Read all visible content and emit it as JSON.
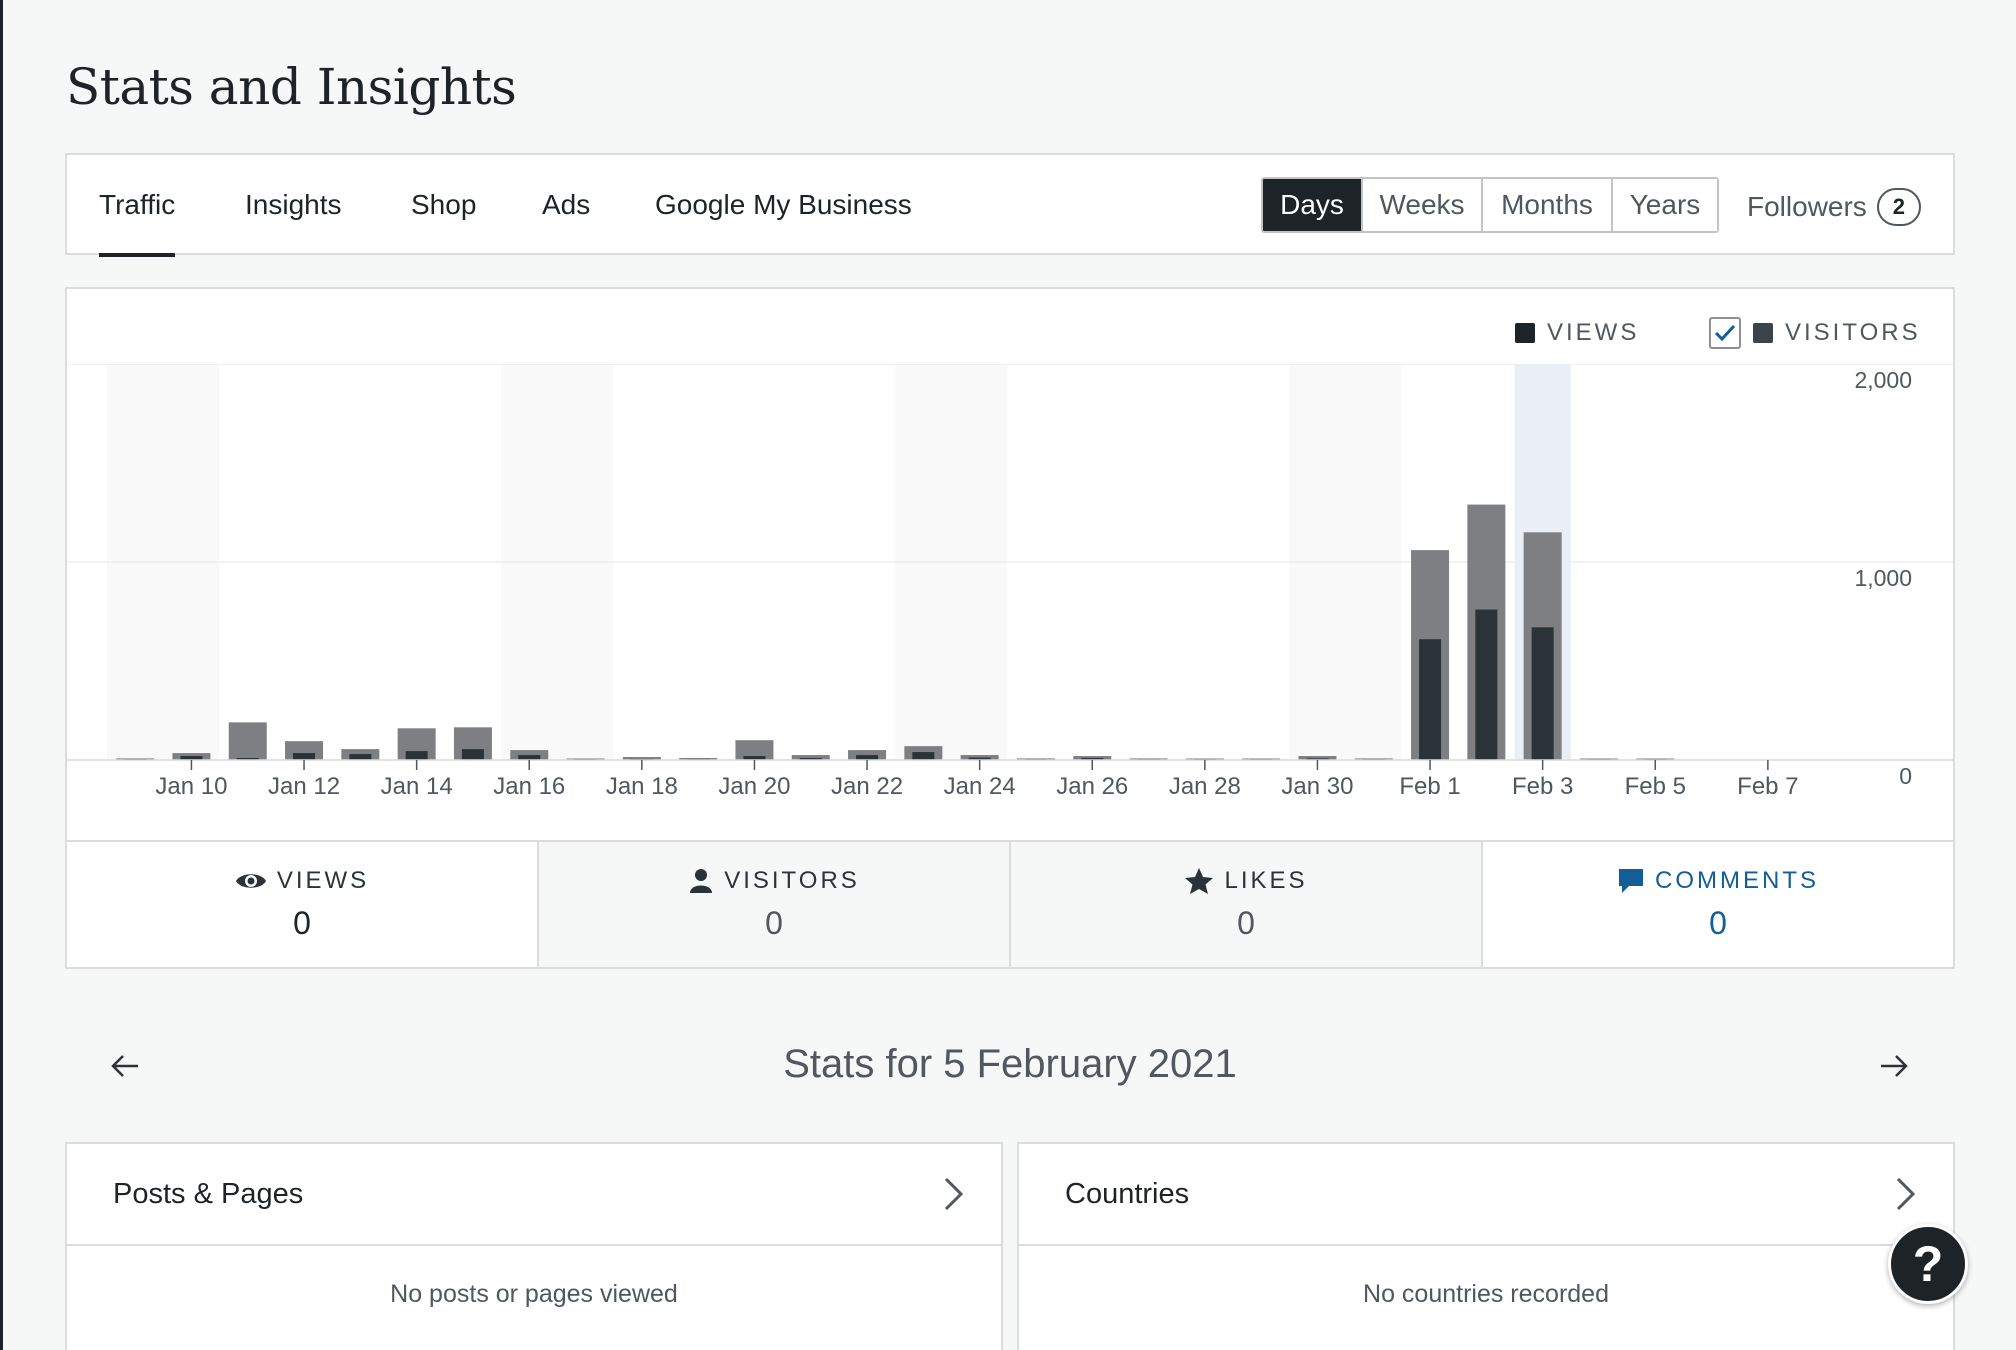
{
  "page": {
    "title": "Stats and Insights"
  },
  "nav": {
    "tabs": [
      {
        "label": "Traffic",
        "active": true
      },
      {
        "label": "Insights"
      },
      {
        "label": "Shop"
      },
      {
        "label": "Ads"
      },
      {
        "label": "Google My Business"
      }
    ],
    "periods": [
      "Days",
      "Weeks",
      "Months",
      "Years"
    ],
    "selected_period": "Days",
    "followers_label": "Followers",
    "followers_count": "2"
  },
  "legend": {
    "views": "VIEWS",
    "visitors": "VISITORS",
    "visitors_checked": true
  },
  "chart_data": {
    "type": "bar",
    "categories": [
      "Jan 9",
      "Jan 10",
      "Jan 11",
      "Jan 12",
      "Jan 13",
      "Jan 14",
      "Jan 15",
      "Jan 16",
      "Jan 17",
      "Jan 18",
      "Jan 19",
      "Jan 20",
      "Jan 21",
      "Jan 22",
      "Jan 23",
      "Jan 24",
      "Jan 25",
      "Jan 26",
      "Jan 27",
      "Jan 28",
      "Jan 29",
      "Jan 30",
      "Jan 31",
      "Feb 1",
      "Feb 2",
      "Feb 3",
      "Feb 4",
      "Feb 5"
    ],
    "tick_labels": [
      "Jan 10",
      "Jan 12",
      "Jan 14",
      "Jan 16",
      "Jan 18",
      "Jan 20",
      "Jan 22",
      "Jan 24",
      "Jan 26",
      "Jan 28",
      "Jan 30",
      "Feb 1",
      "Feb 3",
      "Feb 5",
      "Feb 7"
    ],
    "series": [
      {
        "name": "VIEWS",
        "values": [
          8,
          35,
          190,
          95,
          55,
          160,
          165,
          50,
          6,
          15,
          10,
          100,
          25,
          50,
          70,
          25,
          8,
          20,
          8,
          6,
          4,
          20,
          8,
          1060,
          1290,
          1150,
          4,
          0
        ]
      },
      {
        "name": "VISITORS",
        "values": [
          4,
          20,
          10,
          35,
          30,
          45,
          55,
          25,
          2,
          4,
          4,
          20,
          10,
          25,
          40,
          12,
          4,
          10,
          4,
          2,
          2,
          8,
          4,
          610,
          760,
          670,
          2,
          0
        ]
      }
    ],
    "ylim": [
      0,
      2000
    ],
    "yticks": [
      "2,000",
      "1,000",
      "0"
    ],
    "highlighted_category": "Feb 3",
    "colors": {
      "views": "#7d7f83",
      "visitors": "#2c3338",
      "highlight": "#e9eff5",
      "weekend": "#f9f9f9"
    }
  },
  "stats": [
    {
      "label": "VIEWS",
      "value": "0",
      "icon": "eye-icon"
    },
    {
      "label": "VISITORS",
      "value": "0",
      "icon": "person-icon"
    },
    {
      "label": "LIKES",
      "value": "0",
      "icon": "star-icon"
    },
    {
      "label": "COMMENTS",
      "value": "0",
      "icon": "comment-icon"
    }
  ],
  "date_nav": {
    "title": "Stats for 5 February 2021"
  },
  "modules": [
    {
      "title": "Posts & Pages",
      "empty": "No posts or pages viewed"
    },
    {
      "title": "Countries",
      "empty": "No countries recorded"
    }
  ],
  "help": {
    "label": "?"
  }
}
